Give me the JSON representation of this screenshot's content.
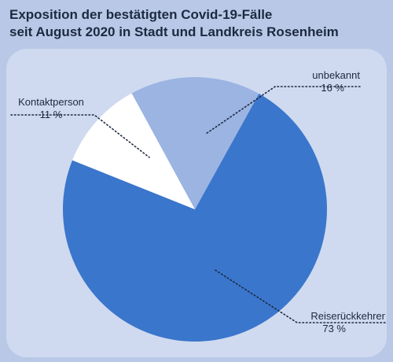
{
  "chart_data": {
    "type": "pie",
    "title_lines": [
      "Exposition der bestätigten Covid-19-Fälle",
      "seit August 2020 in Stadt und Landkreis Rosenheim"
    ],
    "slices": [
      {
        "name": "Reiserückkehrer",
        "value": 73,
        "label": "73 %",
        "color": "#3a76cc"
      },
      {
        "name": "Kontaktperson",
        "value": 11,
        "label": "11 %",
        "color": "#ffffff"
      },
      {
        "name": "unbekannt",
        "value": 16,
        "label": "16 %",
        "color": "#9bb4e2"
      }
    ]
  },
  "colors": {
    "background": "#b8c8e6",
    "panel": "#cfdaf0",
    "text": "#1d2940"
  }
}
